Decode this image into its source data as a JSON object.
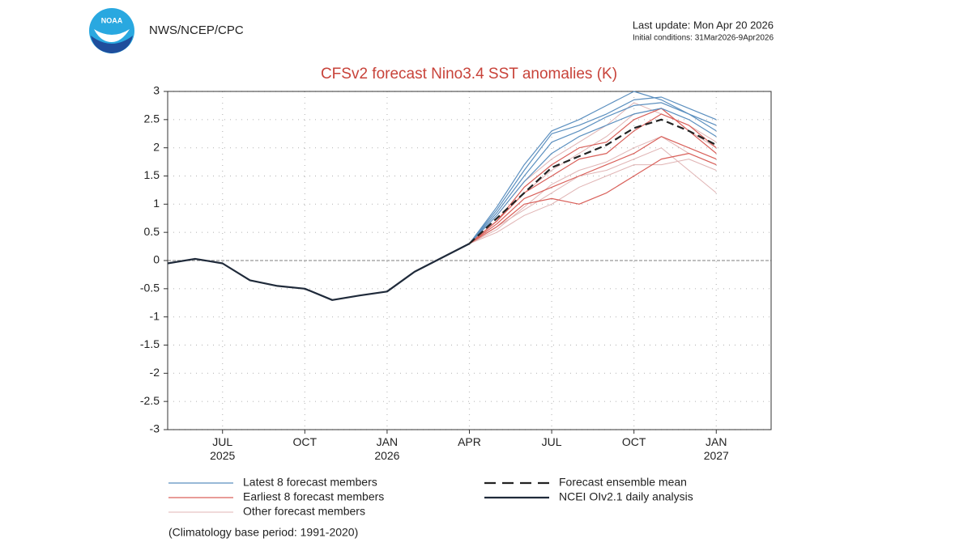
{
  "header": {
    "logo_text": "NOAA",
    "agency": "NWS/NCEP/CPC",
    "last_update": "Last update: Mon Apr 20 2026",
    "initial_conditions": "Initial conditions: 31Mar2026-9Apr2026"
  },
  "chart_data": {
    "type": "line",
    "title": "CFSv2 forecast Nino3.4 SST anomalies (K)",
    "footnote": "(Climatology base period: 1991-2020)",
    "categories": [
      null,
      null,
      "JUL 2025",
      null,
      null,
      "OCT",
      null,
      null,
      "JAN 2026",
      null,
      null,
      "APR",
      null,
      null,
      "JUL",
      null,
      null,
      "OCT",
      null,
      null,
      "JAN 2027"
    ],
    "ylim": [
      -3,
      3
    ],
    "yticks": [
      -3,
      -2.5,
      -2,
      -1.5,
      -1,
      -0.5,
      0,
      0.5,
      1,
      1.5,
      2,
      2.5,
      3
    ],
    "grid": true,
    "series": [
      {
        "name": "Other forecast members",
        "color": "#e0b4b4",
        "width": 1,
        "members": [
          [
            null,
            null,
            null,
            null,
            null,
            null,
            null,
            null,
            null,
            null,
            null,
            0.3,
            0.6,
            0.9,
            1.2,
            1.5,
            1.6,
            1.8,
            2.0,
            1.6,
            1.2
          ],
          [
            null,
            null,
            null,
            null,
            null,
            null,
            null,
            null,
            null,
            null,
            null,
            0.3,
            0.5,
            0.8,
            1.0,
            1.3,
            1.5,
            1.7,
            1.7,
            1.8,
            1.6
          ],
          [
            null,
            null,
            null,
            null,
            null,
            null,
            null,
            null,
            null,
            null,
            null,
            0.3,
            0.7,
            1.2,
            1.6,
            1.9,
            2.2,
            2.6,
            2.7,
            2.3,
            2.0
          ],
          [
            null,
            null,
            null,
            null,
            null,
            null,
            null,
            null,
            null,
            null,
            null,
            0.3,
            0.8,
            1.4,
            1.8,
            2.1,
            2.4,
            2.8,
            2.6,
            2.4,
            2.1
          ],
          [
            null,
            null,
            null,
            null,
            null,
            null,
            null,
            null,
            null,
            null,
            null,
            0.3,
            0.55,
            0.95,
            1.35,
            1.6,
            1.75,
            2.0,
            2.2,
            1.9,
            1.7
          ]
        ]
      },
      {
        "name": "Earliest 8 forecast members",
        "color": "#d9605a",
        "width": 1.2,
        "members": [
          [
            null,
            null,
            null,
            null,
            null,
            null,
            null,
            null,
            null,
            null,
            null,
            0.3,
            0.7,
            1.2,
            1.5,
            1.8,
            1.9,
            2.3,
            2.6,
            2.4,
            2.0
          ],
          [
            null,
            null,
            null,
            null,
            null,
            null,
            null,
            null,
            null,
            null,
            null,
            0.3,
            0.65,
            1.1,
            1.3,
            1.5,
            1.7,
            1.9,
            2.2,
            2.0,
            1.8
          ],
          [
            null,
            null,
            null,
            null,
            null,
            null,
            null,
            null,
            null,
            null,
            null,
            0.3,
            0.6,
            1.0,
            1.1,
            1.0,
            1.2,
            1.5,
            1.8,
            1.9,
            1.7
          ],
          [
            null,
            null,
            null,
            null,
            null,
            null,
            null,
            null,
            null,
            null,
            null,
            0.3,
            0.7,
            1.3,
            1.7,
            2.0,
            2.1,
            2.5,
            2.7,
            2.3,
            1.9
          ]
        ]
      },
      {
        "name": "Latest 8 forecast members",
        "color": "#5b8fbf",
        "width": 1.2,
        "members": [
          [
            null,
            null,
            null,
            null,
            null,
            null,
            null,
            null,
            null,
            null,
            null,
            0.3,
            0.9,
            1.6,
            2.25,
            2.4,
            2.6,
            2.85,
            2.9,
            2.7,
            2.5
          ],
          [
            null,
            null,
            null,
            null,
            null,
            null,
            null,
            null,
            null,
            null,
            null,
            0.3,
            0.85,
            1.5,
            2.1,
            2.3,
            2.55,
            2.75,
            2.8,
            2.6,
            2.3
          ],
          [
            null,
            null,
            null,
            null,
            null,
            null,
            null,
            null,
            null,
            null,
            null,
            0.3,
            0.8,
            1.4,
            1.9,
            2.2,
            2.4,
            2.6,
            2.7,
            2.5,
            2.2
          ],
          [
            null,
            null,
            null,
            null,
            null,
            null,
            null,
            null,
            null,
            null,
            null,
            0.3,
            0.95,
            1.7,
            2.3,
            2.5,
            2.75,
            3.0,
            2.85,
            2.6,
            2.4
          ]
        ]
      },
      {
        "name": "Forecast ensemble mean",
        "color": "#222222",
        "width": 2.2,
        "dash": true,
        "values": [
          null,
          null,
          null,
          null,
          null,
          null,
          null,
          null,
          null,
          null,
          null,
          0.3,
          0.75,
          1.2,
          1.65,
          1.85,
          2.05,
          2.35,
          2.5,
          2.3,
          2.05
        ]
      },
      {
        "name": "NCEI OIv2.1 daily analysis",
        "color": "#1f2a3a",
        "width": 2.2,
        "values": [
          -0.05,
          0.03,
          -0.05,
          -0.35,
          -0.45,
          -0.5,
          -0.7,
          -0.62,
          -0.55,
          -0.2,
          0.05,
          0.3,
          null,
          null,
          null,
          null,
          null,
          null,
          null,
          null,
          null
        ]
      }
    ]
  }
}
